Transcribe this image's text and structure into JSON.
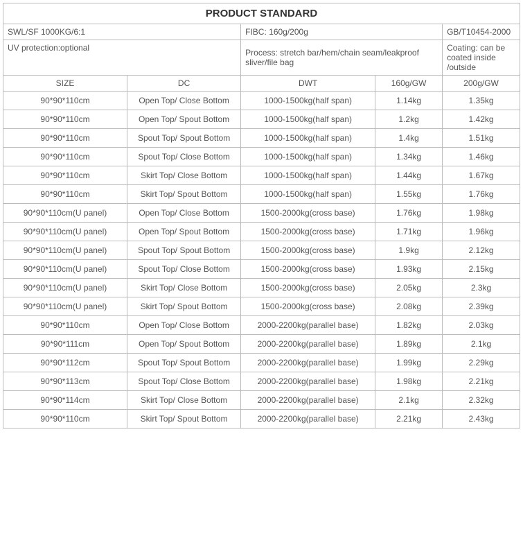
{
  "title": "PRODUCT STANDARD",
  "header": {
    "swl": "SWL/SF 1000KG/6:1",
    "fibc": "FIBC: 160g/200g",
    "std": "GB/T10454-2000",
    "uv": "UV protection:optional",
    "process": "Process: stretch bar/hem/chain seam/leakproof sliver/file bag",
    "coating": "Coating: can be coated inside /outside"
  },
  "columns": {
    "size": "SIZE",
    "dc": "DC",
    "dwt": "DWT",
    "gw160": "160g/GW",
    "gw200": "200g/GW"
  },
  "rows": [
    {
      "size": "90*90*110cm",
      "dc": "Open Top/ Close Bottom",
      "dwt": "1000-1500kg(half span)",
      "g160": "1.14kg",
      "g200": "1.35kg"
    },
    {
      "size": "90*90*110cm",
      "dc": "Open Top/ Spout Bottom",
      "dwt": "1000-1500kg(half span)",
      "g160": "1.2kg",
      "g200": "1.42kg"
    },
    {
      "size": "90*90*110cm",
      "dc": "Spout Top/ Spout Bottom",
      "dwt": "1000-1500kg(half span)",
      "g160": "1.4kg",
      "g200": "1.51kg"
    },
    {
      "size": "90*90*110cm",
      "dc": "Spout Top/ Close Bottom",
      "dwt": "1000-1500kg(half span)",
      "g160": "1.34kg",
      "g200": "1.46kg"
    },
    {
      "size": "90*90*110cm",
      "dc": "Skirt Top/ Close Bottom",
      "dwt": "1000-1500kg(half span)",
      "g160": "1.44kg",
      "g200": "1.67kg"
    },
    {
      "size": "90*90*110cm",
      "dc": "Skirt Top/ Spout Bottom",
      "dwt": "1000-1500kg(half span)",
      "g160": "1.55kg",
      "g200": "1.76kg"
    },
    {
      "size": "90*90*110cm(U panel)",
      "dc": "Open Top/ Close Bottom",
      "dwt": "1500-2000kg(cross base)",
      "g160": "1.76kg",
      "g200": "1.98kg"
    },
    {
      "size": "90*90*110cm(U panel)",
      "dc": "Open Top/ Spout Bottom",
      "dwt": "1500-2000kg(cross base)",
      "g160": "1.71kg",
      "g200": "1.96kg"
    },
    {
      "size": "90*90*110cm(U panel)",
      "dc": "Spout Top/ Spout Bottom",
      "dwt": "1500-2000kg(cross base)",
      "g160": "1.9kg",
      "g200": "2.12kg"
    },
    {
      "size": "90*90*110cm(U panel)",
      "dc": "Spout Top/ Close Bottom",
      "dwt": "1500-2000kg(cross base)",
      "g160": "1.93kg",
      "g200": "2.15kg"
    },
    {
      "size": "90*90*110cm(U panel)",
      "dc": "Skirt Top/ Close Bottom",
      "dwt": "1500-2000kg(cross base)",
      "g160": "2.05kg",
      "g200": "2.3kg"
    },
    {
      "size": "90*90*110cm(U panel)",
      "dc": "Skirt Top/ Spout Bottom",
      "dwt": "1500-2000kg(cross base)",
      "g160": "2.08kg",
      "g200": "2.39kg"
    },
    {
      "size": "90*90*110cm",
      "dc": "Open Top/ Close Bottom",
      "dwt": "2000-2200kg(parallel base)",
      "g160": "1.82kg",
      "g200": "2.03kg"
    },
    {
      "size": "90*90*111cm",
      "dc": "Open Top/ Spout Bottom",
      "dwt": "2000-2200kg(parallel base)",
      "g160": "1.89kg",
      "g200": "2.1kg"
    },
    {
      "size": "90*90*112cm",
      "dc": "Spout Top/ Spout Bottom",
      "dwt": "2000-2200kg(parallel base)",
      "g160": "1.99kg",
      "g200": "2.29kg"
    },
    {
      "size": "90*90*113cm",
      "dc": "Spout Top/ Close Bottom",
      "dwt": "2000-2200kg(parallel base)",
      "g160": "1.98kg",
      "g200": "2.21kg"
    },
    {
      "size": "90*90*114cm",
      "dc": "Skirt Top/ Close Bottom",
      "dwt": "2000-2200kg(parallel base)",
      "g160": "2.1kg",
      "g200": "2.32kg"
    },
    {
      "size": "90*90*110cm",
      "dc": "Skirt Top/ Spout Bottom",
      "dwt": "2000-2200kg(parallel base)",
      "g160": "2.21kg",
      "g200": "2.43kg"
    }
  ],
  "colors": {
    "border": "#bbbbbb",
    "text": "#555555",
    "title": "#333333",
    "background": "#ffffff"
  }
}
